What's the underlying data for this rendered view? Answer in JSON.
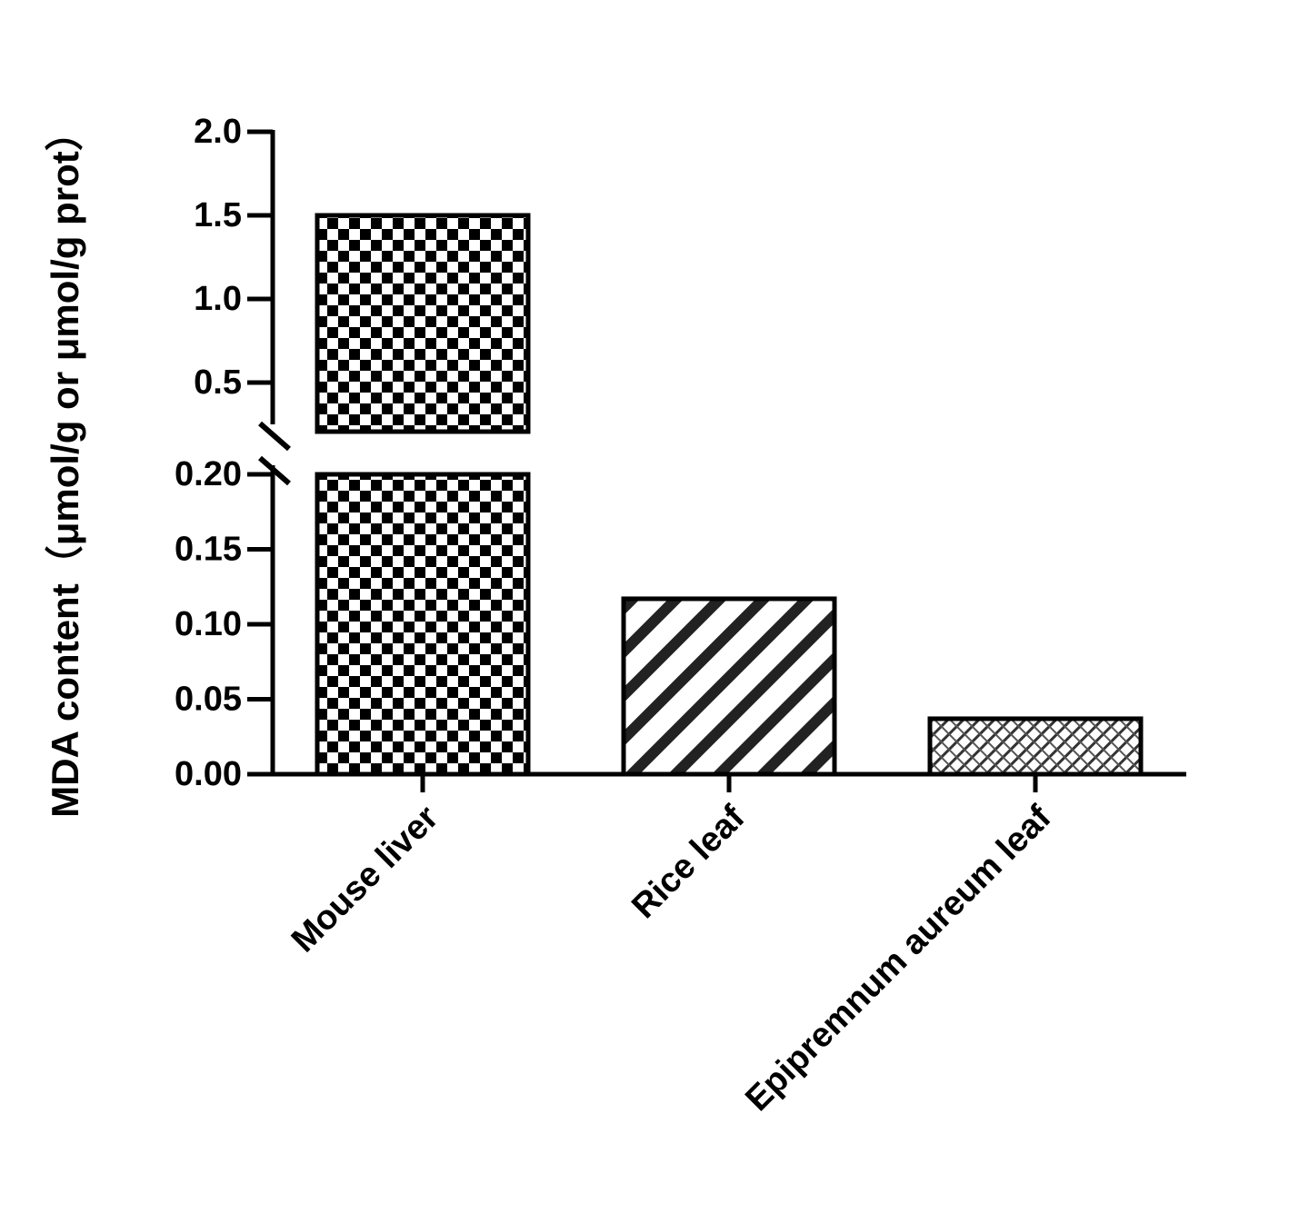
{
  "chart_data": {
    "type": "bar",
    "y_label": "MDA content（μmol/g or μmol/g prot）",
    "categories": [
      "Mouse liver",
      "Rice leaf",
      "Epipremnum aureum leaf"
    ],
    "values": [
      1.5,
      0.117,
      0.037
    ],
    "color": "#000000",
    "y_segments": [
      {
        "ylim": [
          0,
          0.2
        ],
        "yticks": [
          {
            "value": 0,
            "label": "0.00"
          },
          {
            "value": 0.05,
            "label": "0.05"
          },
          {
            "value": 0.1,
            "label": "0.10"
          },
          {
            "value": 0.15,
            "label": "0.15"
          },
          {
            "value": 0.2,
            "label": "0.20"
          }
        ]
      },
      {
        "ylim": [
          0.25,
          2.0
        ],
        "yticks": [
          0.5,
          {
            "value": 1,
            "label": "1.0"
          },
          1.5,
          {
            "value": 2,
            "label": "2.0"
          }
        ]
      }
    ]
  }
}
